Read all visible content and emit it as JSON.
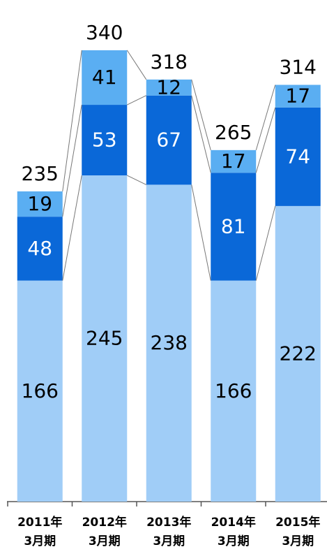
{
  "chart_data": {
    "type": "stacked_bar",
    "categories": [
      [
        "2011年",
        "3月期"
      ],
      [
        "2012年",
        "3月期"
      ],
      [
        "2013年",
        "3月期"
      ],
      [
        "2014年",
        "3月期"
      ],
      [
        "2015年",
        "3月期"
      ]
    ],
    "series": [
      {
        "color": "#a0cdf7",
        "values": [
          166,
          245,
          238,
          166,
          222
        ]
      },
      {
        "color": "#0a68d8",
        "values": [
          48,
          53,
          67,
          81,
          74
        ]
      },
      {
        "color": "#5aaef2",
        "values": [
          19,
          41,
          12,
          17,
          17
        ]
      }
    ],
    "totals": [
      235,
      340,
      318,
      265,
      314
    ],
    "ylim": [
      0,
      340
    ]
  }
}
